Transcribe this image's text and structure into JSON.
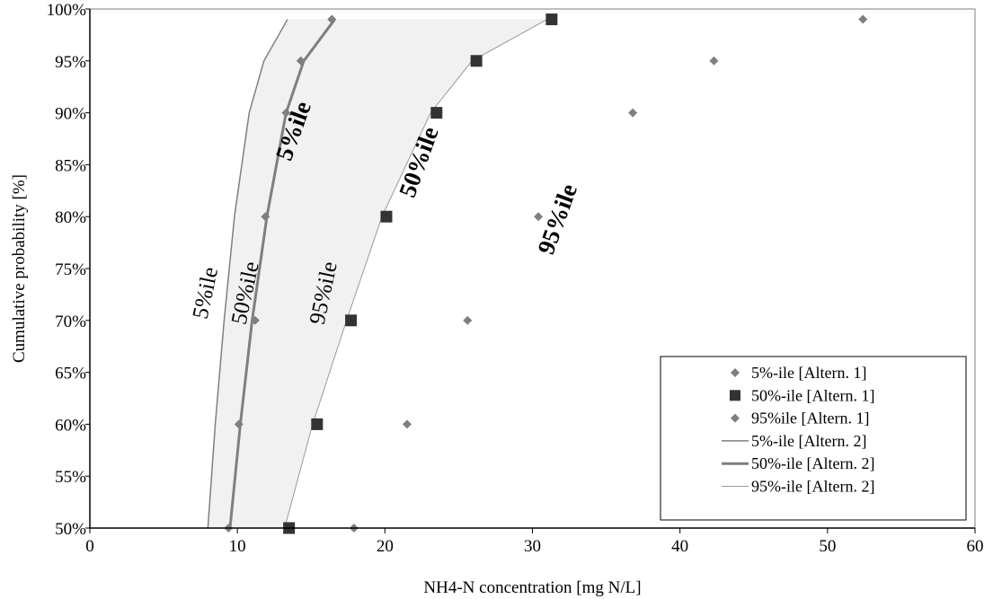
{
  "chart_data": {
    "type": "scatter",
    "xlabel": "NH4-N concentration [mg N/L]",
    "ylabel": "Cumulative probability [%]",
    "xlim": [
      0,
      60
    ],
    "ylim": [
      0.5,
      1.0
    ],
    "x_ticks": [
      0,
      10,
      20,
      30,
      40,
      50,
      60
    ],
    "y_ticks": [
      0.5,
      0.55,
      0.6,
      0.65,
      0.7,
      0.75,
      0.8,
      0.85,
      0.9,
      0.95,
      1.0
    ],
    "x_tick_labels": [
      "0",
      "10",
      "20",
      "30",
      "40",
      "50",
      "60"
    ],
    "y_tick_labels": [
      "50%",
      "55%",
      "60%",
      "65%",
      "70%",
      "75%",
      "80%",
      "85%",
      "90%",
      "95%",
      "100%"
    ],
    "grid": false,
    "legend_position": "bottom-right",
    "series": [
      {
        "name": "5%-ile [Altern. 1]",
        "kind": "marker",
        "marker": "diamond",
        "color": "#7f7f7f",
        "points": [
          {
            "x": 9.4,
            "y": 0.5
          },
          {
            "x": 10.1,
            "y": 0.6
          },
          {
            "x": 11.2,
            "y": 0.7
          },
          {
            "x": 11.9,
            "y": 0.8
          },
          {
            "x": 13.3,
            "y": 0.9
          },
          {
            "x": 14.3,
            "y": 0.95
          },
          {
            "x": 16.4,
            "y": 0.99
          }
        ]
      },
      {
        "name": "50%-ile [Altern. 1]",
        "kind": "marker",
        "marker": "square",
        "color": "#333333",
        "points": [
          {
            "x": 13.5,
            "y": 0.5
          },
          {
            "x": 15.4,
            "y": 0.6
          },
          {
            "x": 17.7,
            "y": 0.7
          },
          {
            "x": 20.1,
            "y": 0.8
          },
          {
            "x": 23.5,
            "y": 0.9
          },
          {
            "x": 26.2,
            "y": 0.95
          },
          {
            "x": 31.3,
            "y": 0.99
          }
        ]
      },
      {
        "name": "95%ile [Altern. 1]",
        "kind": "marker",
        "marker": "diamond",
        "color": "#7f7f7f",
        "points": [
          {
            "x": 17.9,
            "y": 0.5
          },
          {
            "x": 21.5,
            "y": 0.6
          },
          {
            "x": 25.6,
            "y": 0.7
          },
          {
            "x": 30.4,
            "y": 0.8
          },
          {
            "x": 36.8,
            "y": 0.9
          },
          {
            "x": 42.3,
            "y": 0.95
          },
          {
            "x": 52.4,
            "y": 0.99
          }
        ]
      },
      {
        "name": "5%-ile [Altern. 2]",
        "kind": "line",
        "color": "#7f7f7f",
        "width": 1.5,
        "points": [
          {
            "x": 8.0,
            "y": 0.5
          },
          {
            "x": 8.5,
            "y": 0.6
          },
          {
            "x": 9.1,
            "y": 0.7
          },
          {
            "x": 9.8,
            "y": 0.8
          },
          {
            "x": 10.8,
            "y": 0.9
          },
          {
            "x": 11.8,
            "y": 0.95
          },
          {
            "x": 13.4,
            "y": 0.99
          }
        ]
      },
      {
        "name": "50%-ile [Altern. 2]",
        "kind": "line",
        "color": "#7f7f7f",
        "width": 3,
        "points": [
          {
            "x": 9.5,
            "y": 0.5
          },
          {
            "x": 10.2,
            "y": 0.6
          },
          {
            "x": 11.0,
            "y": 0.7
          },
          {
            "x": 12.0,
            "y": 0.8
          },
          {
            "x": 13.3,
            "y": 0.9
          },
          {
            "x": 14.5,
            "y": 0.95
          },
          {
            "x": 16.6,
            "y": 0.99
          }
        ]
      },
      {
        "name": "95%-ile [Altern. 2]",
        "kind": "line",
        "color": "#9a9a9a",
        "width": 1,
        "points": [
          {
            "x": 13.2,
            "y": 0.5
          },
          {
            "x": 15.1,
            "y": 0.6
          },
          {
            "x": 17.4,
            "y": 0.7
          },
          {
            "x": 19.8,
            "y": 0.8
          },
          {
            "x": 23.1,
            "y": 0.9
          },
          {
            "x": 25.9,
            "y": 0.95
          },
          {
            "x": 31.0,
            "y": 0.99
          }
        ]
      }
    ],
    "band": {
      "lower_series": "5%-ile [Altern. 2]",
      "upper_series": "95%-ile [Altern. 2]",
      "color": "#f1f1f1"
    },
    "annotations": [
      {
        "text": "5%ile",
        "x": 8.3,
        "y": 0.725,
        "style": "normal"
      },
      {
        "text": "50%ile",
        "x": 11.0,
        "y": 0.725,
        "style": "normal"
      },
      {
        "text": "95%ile",
        "x": 16.3,
        "y": 0.725,
        "style": "normal"
      },
      {
        "text": "5%ile",
        "x": 14.3,
        "y": 0.88,
        "style": "bold"
      },
      {
        "text": "50%ile",
        "x": 22.8,
        "y": 0.85,
        "style": "bold"
      },
      {
        "text": "95%ile",
        "x": 32.2,
        "y": 0.795,
        "style": "bold"
      }
    ]
  }
}
